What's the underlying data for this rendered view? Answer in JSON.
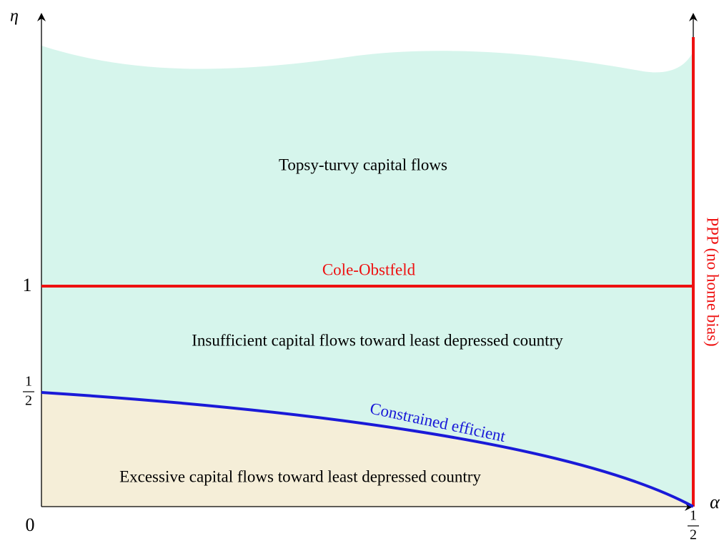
{
  "axes": {
    "y_label": "η",
    "x_label": "α",
    "ticks": {
      "origin": "0",
      "y_one": "1",
      "y_half": {
        "numerator": "1",
        "denominator": "2"
      },
      "x_half": {
        "numerator": "1",
        "denominator": "2"
      }
    }
  },
  "regions": {
    "top": "Topsy-turvy capital flows",
    "middle": "Insufficient capital flows toward least depressed country",
    "bottom": "Excessive capital flows toward least depressed country"
  },
  "curves": {
    "cole_obstfeld": "Cole-Obstfeld",
    "constrained": "Constrained efficient",
    "ppp": "PPP (no home bias)"
  }
}
